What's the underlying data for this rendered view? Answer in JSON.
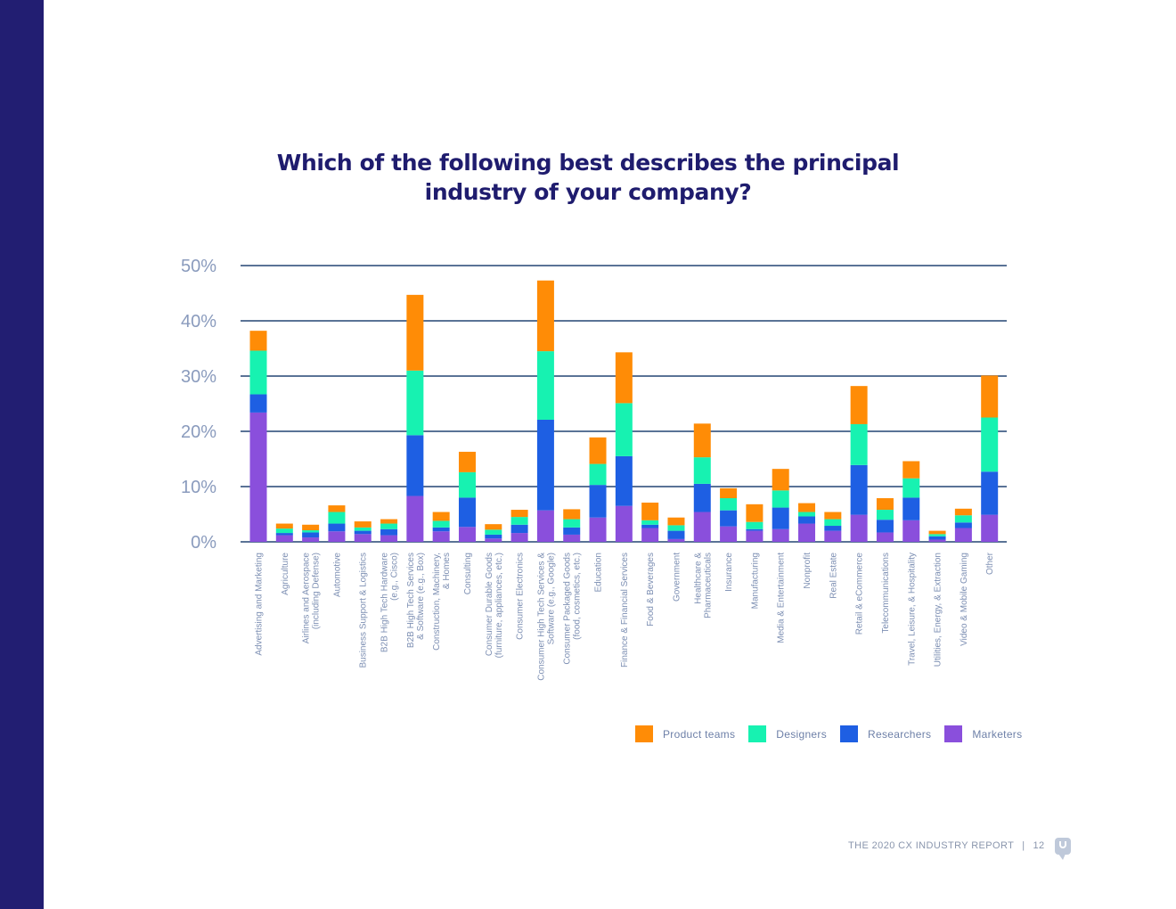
{
  "chart_data": {
    "type": "bar",
    "stacked": true,
    "title_lines": [
      "Which of the following best describes the principal",
      "industry of your company?"
    ],
    "xlabel": "",
    "ylabel": "",
    "ylim": [
      0,
      50
    ],
    "yticks": [
      {
        "value": 0,
        "label": "0%"
      },
      {
        "value": 10,
        "label": "10%"
      },
      {
        "value": 20,
        "label": "20%"
      },
      {
        "value": 30,
        "label": "30%"
      },
      {
        "value": 40,
        "label": "40%"
      },
      {
        "value": 50,
        "label": "50%"
      }
    ],
    "grid": true,
    "legend_position": "bottom-right",
    "categories": [
      [
        "Advertising and Marketing"
      ],
      [
        "Agriculture"
      ],
      [
        "Airlines and Aerospace",
        "(including Defense)"
      ],
      [
        "Automotive"
      ],
      [
        "Business Support & Logistics"
      ],
      [
        "B2B  High Tech Hardware",
        "(e.g., Cisco)"
      ],
      [
        "B2B  High Tech Services",
        "& Software (e.g., Box)"
      ],
      [
        "Construction, Machinery,",
        "& Homes"
      ],
      [
        "Consulting"
      ],
      [
        "Consumer Durable Goods",
        "(furniture, appliances, etc.)"
      ],
      [
        "Consumer Electronics"
      ],
      [
        "Consumer High Tech Services &",
        "Software (e.g., Google)"
      ],
      [
        "Consumer Packaged Goods",
        "(food, cosmetics, etc.)"
      ],
      [
        "Education"
      ],
      [
        "Finance & Financial Services"
      ],
      [
        "Food & Beverages"
      ],
      [
        "Government"
      ],
      [
        "Healthcare &",
        "Pharmaceuticals"
      ],
      [
        "Insurance"
      ],
      [
        "Manufacturing"
      ],
      [
        "Media & Entertainment"
      ],
      [
        "Nonprofit"
      ],
      [
        "Real Estate"
      ],
      [
        "Retail & eCommerce"
      ],
      [
        "Telecommunications"
      ],
      [
        "Travel, Leisure, & Hospitality"
      ],
      [
        "Utilities, Energy, & Extraction"
      ],
      [
        "Video & Mobile Gaming"
      ],
      [
        "Other"
      ]
    ],
    "series": [
      {
        "name": "Marketers",
        "color": "#8a4fdc",
        "values": [
          23.4,
          1.2,
          0.8,
          1.9,
          1.4,
          1.2,
          8.3,
          1.9,
          2.7,
          0.6,
          1.6,
          5.7,
          1.3,
          4.4,
          6.5,
          2.5,
          0.5,
          5.4,
          2.8,
          2.0,
          2.3,
          3.3,
          2.0,
          4.9,
          1.7,
          3.9,
          0.4,
          2.5,
          4.9
        ]
      },
      {
        "name": "Researchers",
        "color": "#1e5fe3",
        "values": [
          3.3,
          0.4,
          0.9,
          1.4,
          0.6,
          1.1,
          11.0,
          0.7,
          5.3,
          0.7,
          1.5,
          16.4,
          1.3,
          5.9,
          9.0,
          0.6,
          1.5,
          5.1,
          2.9,
          0.3,
          3.9,
          1.3,
          0.9,
          9.0,
          2.3,
          4.1,
          0.6,
          1.0,
          7.8
        ]
      },
      {
        "name": "Designers",
        "color": "#17f2b1",
        "values": [
          7.9,
          0.8,
          0.4,
          2.1,
          0.6,
          1.0,
          11.7,
          1.2,
          4.6,
          0.9,
          1.4,
          12.4,
          1.5,
          3.8,
          9.6,
          0.8,
          1.0,
          4.8,
          2.2,
          1.3,
          3.1,
          0.8,
          1.2,
          7.4,
          1.8,
          3.5,
          0.4,
          1.3,
          9.8
        ]
      },
      {
        "name": "Product teams",
        "color": "#ff8c06",
        "values": [
          3.6,
          0.9,
          1.0,
          1.2,
          1.1,
          0.8,
          13.7,
          1.6,
          3.7,
          1.0,
          1.3,
          12.8,
          1.8,
          4.8,
          9.2,
          3.2,
          1.4,
          6.1,
          1.8,
          3.2,
          3.9,
          1.6,
          1.3,
          6.9,
          2.1,
          3.1,
          0.6,
          1.2,
          7.6
        ]
      }
    ],
    "legend_order": [
      "Product teams",
      "Designers",
      "Researchers",
      "Marketers"
    ]
  },
  "footer": {
    "report_title": "THE 2020 CX INDUSTRY REPORT",
    "separator": "|",
    "page_number": "12"
  },
  "icons": {
    "footer_logo": "speech-bubble-u-icon"
  }
}
